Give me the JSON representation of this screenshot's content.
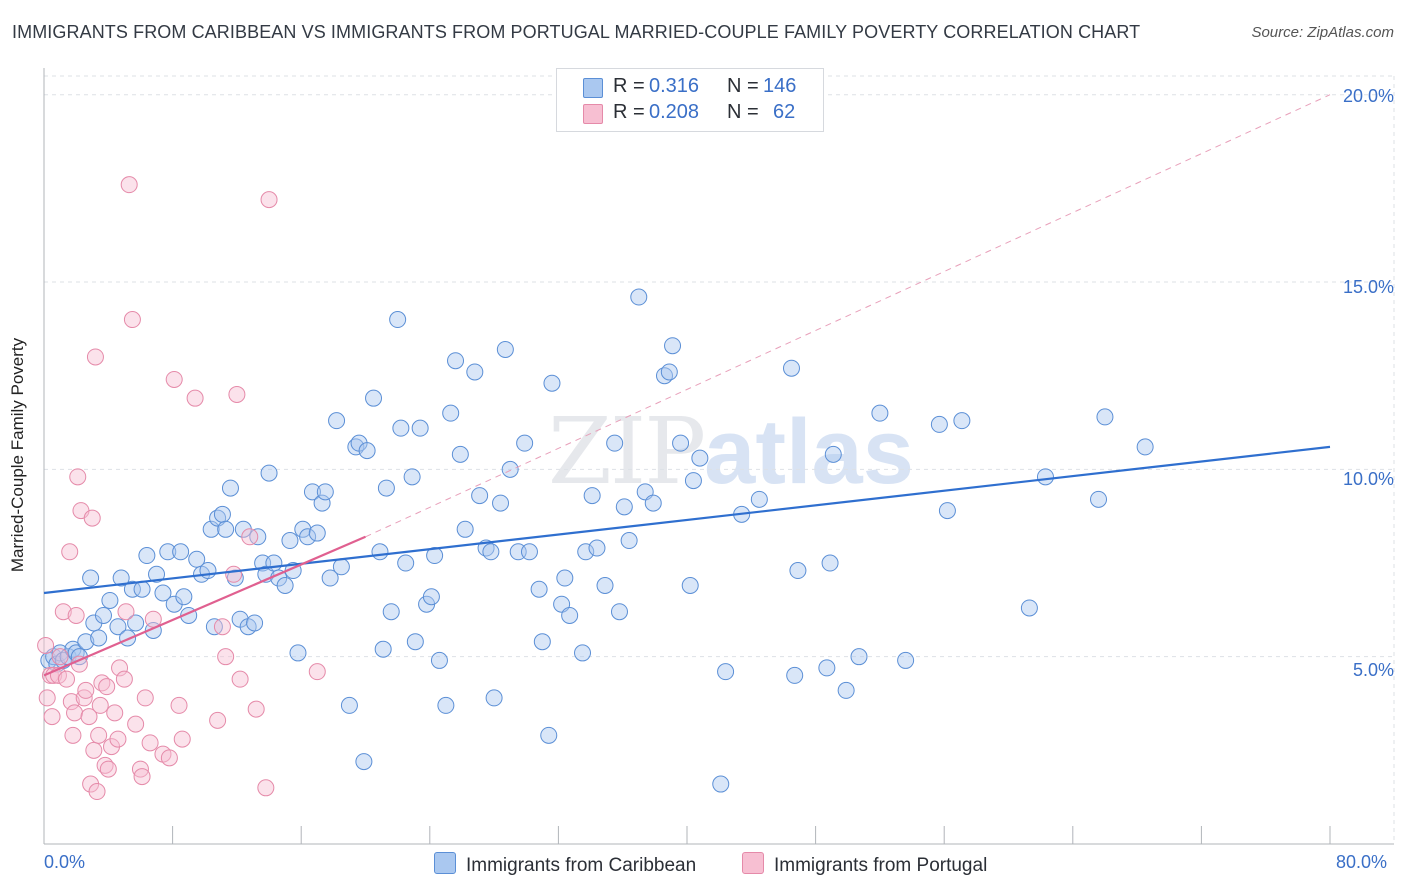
{
  "title": "IMMIGRANTS FROM CARIBBEAN VS IMMIGRANTS FROM PORTUGAL MARRIED-COUPLE FAMILY POVERTY CORRELATION CHART",
  "source": "Source: ZipAtlas.com",
  "watermark": {
    "zip": "ZIP",
    "atlas": "atlas"
  },
  "legend": {
    "rows": [
      {
        "r_label": "R =",
        "r_value": "0.316",
        "n_label": "N =",
        "n_value": "146",
        "color": "#aac8f0",
        "border": "#5b8fd6"
      },
      {
        "r_label": "R =",
        "r_value": "0.208",
        "n_label": "N =",
        "n_value": "62",
        "color": "#f7bfd2",
        "border": "#e58aa9"
      }
    ]
  },
  "bottom_legend": [
    {
      "label": "Immigrants from Caribbean",
      "color": "#aac8f0",
      "border": "#5b8fd6"
    },
    {
      "label": "Immigrants from Portugal",
      "color": "#f7bfd2",
      "border": "#e58aa9"
    }
  ],
  "chart_data": {
    "type": "scatter",
    "title": "IMMIGRANTS FROM CARIBBEAN VS IMMIGRANTS FROM PORTUGAL MARRIED-COUPLE FAMILY POVERTY CORRELATION CHART",
    "xlabel": "",
    "ylabel": "Married-Couple Family Poverty",
    "xlim": [
      0,
      80
    ],
    "ylim": [
      0,
      20.5
    ],
    "x_tick_labels": [
      "0.0%",
      "80.0%"
    ],
    "y_ticks": [
      5,
      10,
      15,
      20
    ],
    "y_tick_labels": [
      "5.0%",
      "10.0%",
      "15.0%",
      "20.0%"
    ],
    "grid": true,
    "legend_position": "top-center",
    "series": [
      {
        "name": "Immigrants from Caribbean",
        "color": "#5b8fd6",
        "fill": "#aac8f0",
        "trend": {
          "x": [
            0,
            80
          ],
          "y": [
            6.7,
            10.6
          ],
          "style": "solid",
          "color": "#2f6fcf"
        },
        "points": [
          [
            0.3,
            4.9
          ],
          [
            0.6,
            5.0
          ],
          [
            0.8,
            4.8
          ],
          [
            1.0,
            5.1
          ],
          [
            1.2,
            4.9
          ],
          [
            1.5,
            5.0
          ],
          [
            1.8,
            5.2
          ],
          [
            2.0,
            5.1
          ],
          [
            2.2,
            5.0
          ],
          [
            2.6,
            5.4
          ],
          [
            2.9,
            7.1
          ],
          [
            3.1,
            5.9
          ],
          [
            3.4,
            5.5
          ],
          [
            3.7,
            6.1
          ],
          [
            4.1,
            6.5
          ],
          [
            4.6,
            5.8
          ],
          [
            4.8,
            7.1
          ],
          [
            5.2,
            5.5
          ],
          [
            5.5,
            6.8
          ],
          [
            5.7,
            5.9
          ],
          [
            6.1,
            6.8
          ],
          [
            6.4,
            7.7
          ],
          [
            6.8,
            5.7
          ],
          [
            7.0,
            7.2
          ],
          [
            7.4,
            6.7
          ],
          [
            7.7,
            7.8
          ],
          [
            8.1,
            6.4
          ],
          [
            8.5,
            7.8
          ],
          [
            8.7,
            6.6
          ],
          [
            9.0,
            6.1
          ],
          [
            9.5,
            7.6
          ],
          [
            9.8,
            7.2
          ],
          [
            10.2,
            7.3
          ],
          [
            10.4,
            8.4
          ],
          [
            10.6,
            5.8
          ],
          [
            10.8,
            8.7
          ],
          [
            11.1,
            8.8
          ],
          [
            11.3,
            8.4
          ],
          [
            11.6,
            9.5
          ],
          [
            11.9,
            7.1
          ],
          [
            12.2,
            6.0
          ],
          [
            12.4,
            8.4
          ],
          [
            12.7,
            5.8
          ],
          [
            13.1,
            5.9
          ],
          [
            13.3,
            8.2
          ],
          [
            13.6,
            7.5
          ],
          [
            13.8,
            7.2
          ],
          [
            14.0,
            9.9
          ],
          [
            14.3,
            7.5
          ],
          [
            14.6,
            7.1
          ],
          [
            15.0,
            6.9
          ],
          [
            15.3,
            8.1
          ],
          [
            15.5,
            7.3
          ],
          [
            15.8,
            5.1
          ],
          [
            16.1,
            8.4
          ],
          [
            16.4,
            8.2
          ],
          [
            16.7,
            9.4
          ],
          [
            17.0,
            8.3
          ],
          [
            17.3,
            9.1
          ],
          [
            17.5,
            9.4
          ],
          [
            17.8,
            7.1
          ],
          [
            18.2,
            11.3
          ],
          [
            18.5,
            7.4
          ],
          [
            19.0,
            3.7
          ],
          [
            19.4,
            10.6
          ],
          [
            19.6,
            10.7
          ],
          [
            19.9,
            2.2
          ],
          [
            20.1,
            10.5
          ],
          [
            20.5,
            11.9
          ],
          [
            20.9,
            7.8
          ],
          [
            21.1,
            5.2
          ],
          [
            21.3,
            9.5
          ],
          [
            21.6,
            6.2
          ],
          [
            22.0,
            14.0
          ],
          [
            22.2,
            11.1
          ],
          [
            22.5,
            7.5
          ],
          [
            22.9,
            9.8
          ],
          [
            23.1,
            5.4
          ],
          [
            23.4,
            11.1
          ],
          [
            23.8,
            6.4
          ],
          [
            24.1,
            6.6
          ],
          [
            24.3,
            7.7
          ],
          [
            24.6,
            4.9
          ],
          [
            25.0,
            3.7
          ],
          [
            25.3,
            11.5
          ],
          [
            25.6,
            12.9
          ],
          [
            25.9,
            10.4
          ],
          [
            26.2,
            8.4
          ],
          [
            26.8,
            12.6
          ],
          [
            27.1,
            9.3
          ],
          [
            27.5,
            7.9
          ],
          [
            27.8,
            7.8
          ],
          [
            28.0,
            3.9
          ],
          [
            28.4,
            9.1
          ],
          [
            28.7,
            13.2
          ],
          [
            29.0,
            10.0
          ],
          [
            29.5,
            7.8
          ],
          [
            29.9,
            10.7
          ],
          [
            30.2,
            7.8
          ],
          [
            30.8,
            6.8
          ],
          [
            31.0,
            5.4
          ],
          [
            31.4,
            2.9
          ],
          [
            31.6,
            12.3
          ],
          [
            32.2,
            6.4
          ],
          [
            32.4,
            7.1
          ],
          [
            32.7,
            6.1
          ],
          [
            33.5,
            5.1
          ],
          [
            33.7,
            7.8
          ],
          [
            34.1,
            9.3
          ],
          [
            34.4,
            7.9
          ],
          [
            34.9,
            6.9
          ],
          [
            35.5,
            10.7
          ],
          [
            35.8,
            6.2
          ],
          [
            36.1,
            9.0
          ],
          [
            36.4,
            8.1
          ],
          [
            37.0,
            14.6
          ],
          [
            37.4,
            9.4
          ],
          [
            37.9,
            9.1
          ],
          [
            38.6,
            12.5
          ],
          [
            38.9,
            12.6
          ],
          [
            39.1,
            13.3
          ],
          [
            39.6,
            10.7
          ],
          [
            40.2,
            6.9
          ],
          [
            40.4,
            9.7
          ],
          [
            40.8,
            10.3
          ],
          [
            42.1,
            1.6
          ],
          [
            42.4,
            4.6
          ],
          [
            43.4,
            8.8
          ],
          [
            44.5,
            9.2
          ],
          [
            46.5,
            12.7
          ],
          [
            46.7,
            4.5
          ],
          [
            46.9,
            7.3
          ],
          [
            48.7,
            4.7
          ],
          [
            48.9,
            7.5
          ],
          [
            49.1,
            10.4
          ],
          [
            49.9,
            4.1
          ],
          [
            50.7,
            5.0
          ],
          [
            52.0,
            11.5
          ],
          [
            53.6,
            4.9
          ],
          [
            55.7,
            11.2
          ],
          [
            56.2,
            8.9
          ],
          [
            57.1,
            11.3
          ],
          [
            61.3,
            6.3
          ],
          [
            62.3,
            9.8
          ],
          [
            65.6,
            9.2
          ],
          [
            66.0,
            11.4
          ],
          [
            68.5,
            10.6
          ]
        ]
      },
      {
        "name": "Immigrants from Portugal",
        "color": "#e58aa9",
        "fill": "#f7bfd2",
        "trend": {
          "x": [
            0,
            20
          ],
          "y": [
            4.5,
            8.2
          ],
          "style": "solid",
          "color": "#e06090",
          "dashed_extension": {
            "x": [
              20,
              80
            ],
            "y": [
              8.2,
              20.0
            ]
          }
        },
        "points": [
          [
            0.1,
            5.3
          ],
          [
            0.2,
            3.9
          ],
          [
            0.4,
            4.5
          ],
          [
            0.5,
            3.4
          ],
          [
            0.6,
            4.5
          ],
          [
            0.9,
            4.5
          ],
          [
            1.0,
            5.0
          ],
          [
            1.2,
            6.2
          ],
          [
            1.4,
            4.4
          ],
          [
            1.6,
            7.8
          ],
          [
            1.7,
            3.8
          ],
          [
            1.8,
            2.9
          ],
          [
            1.9,
            3.5
          ],
          [
            2.0,
            6.1
          ],
          [
            2.1,
            9.8
          ],
          [
            2.2,
            4.8
          ],
          [
            2.3,
            8.9
          ],
          [
            2.5,
            3.9
          ],
          [
            2.6,
            4.1
          ],
          [
            2.8,
            3.4
          ],
          [
            2.9,
            1.6
          ],
          [
            3.0,
            8.7
          ],
          [
            3.1,
            2.5
          ],
          [
            3.2,
            13.0
          ],
          [
            3.3,
            1.4
          ],
          [
            3.4,
            2.9
          ],
          [
            3.5,
            3.7
          ],
          [
            3.6,
            4.3
          ],
          [
            3.8,
            2.1
          ],
          [
            3.9,
            4.2
          ],
          [
            4.0,
            2.0
          ],
          [
            4.2,
            2.6
          ],
          [
            4.4,
            3.5
          ],
          [
            4.6,
            2.8
          ],
          [
            4.7,
            4.7
          ],
          [
            5.0,
            4.4
          ],
          [
            5.1,
            6.2
          ],
          [
            5.3,
            17.6
          ],
          [
            5.5,
            14.0
          ],
          [
            5.7,
            3.2
          ],
          [
            6.0,
            2.0
          ],
          [
            6.1,
            1.8
          ],
          [
            6.3,
            3.9
          ],
          [
            6.6,
            2.7
          ],
          [
            6.8,
            6.0
          ],
          [
            7.4,
            2.4
          ],
          [
            7.8,
            2.3
          ],
          [
            8.1,
            12.4
          ],
          [
            8.4,
            3.7
          ],
          [
            8.6,
            2.8
          ],
          [
            9.4,
            11.9
          ],
          [
            10.8,
            3.3
          ],
          [
            11.1,
            5.8
          ],
          [
            11.3,
            5.0
          ],
          [
            11.8,
            7.2
          ],
          [
            12.0,
            12.0
          ],
          [
            12.2,
            4.4
          ],
          [
            12.8,
            8.2
          ],
          [
            13.2,
            3.6
          ],
          [
            13.8,
            1.5
          ],
          [
            14.0,
            17.2
          ],
          [
            17.0,
            4.6
          ]
        ]
      }
    ]
  }
}
